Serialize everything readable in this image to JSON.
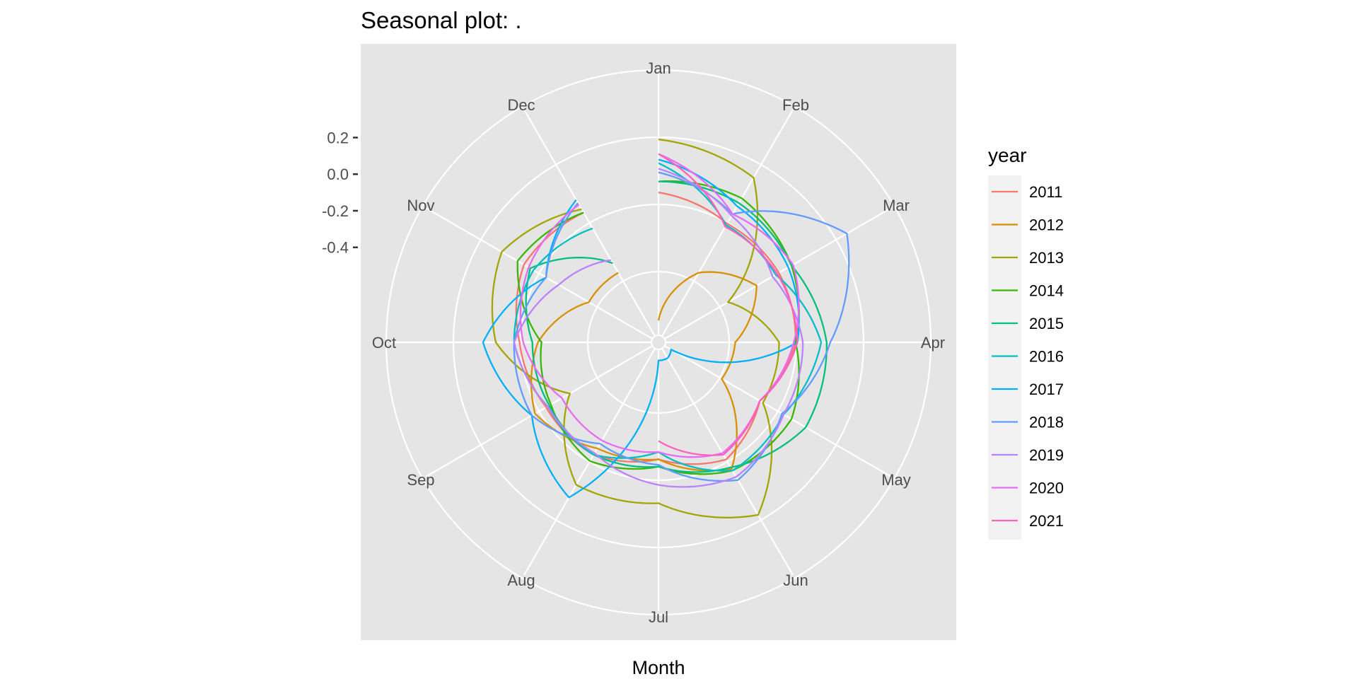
{
  "chart_data": {
    "type": "line",
    "coord": "polar",
    "title": "Seasonal plot: .",
    "xlabel": "Month",
    "ylabel": "",
    "categories": [
      "Jan",
      "Feb",
      "Mar",
      "Apr",
      "May",
      "Jun",
      "Jul",
      "Aug",
      "Sep",
      "Oct",
      "Nov",
      "Dec"
    ],
    "ylim": [
      -0.9,
      0.55
    ],
    "yticks": [
      0.2,
      0.0,
      -0.2,
      -0.4
    ],
    "ytick_labels": [
      "0.2",
      "0.0",
      "-0.2",
      "-0.4"
    ],
    "legend_title": "year",
    "legend_position": "right",
    "series": [
      {
        "name": "2011",
        "color": "#F8766D",
        "values": [
          -0.1,
          -0.17,
          -0.16,
          -0.17,
          -0.28,
          -0.18,
          -0.28,
          -0.21,
          -0.21,
          -0.16,
          -0.07,
          -0.1
        ]
      },
      {
        "name": "2012",
        "color": "#D89000",
        "values": [
          -0.8,
          -0.48,
          -0.3,
          -0.5,
          -0.52,
          -0.12,
          -0.28,
          -0.25,
          -0.14,
          -0.26,
          -0.48,
          -0.48
        ]
      },
      {
        "name": "2013",
        "color": "#A3A500",
        "values": [
          0.19,
          0.12,
          -0.48,
          -0.26,
          -0.26,
          0.17,
          -0.04,
          -0.02,
          -0.36,
          -0.03,
          0.07,
          -0.08
        ]
      },
      {
        "name": "2014",
        "color": "#39B600",
        "values": [
          -0.04,
          -0.01,
          -0.08,
          -0.17,
          -0.08,
          -0.11,
          -0.24,
          -0.17,
          -0.24,
          -0.28,
          -0.03,
          -0.1
        ]
      },
      {
        "name": "2015",
        "color": "#00BF7D",
        "values": [
          -0.04,
          -0.04,
          -0.08,
          0.0,
          0.01,
          -0.13,
          -0.24,
          -0.21,
          -0.23,
          -0.23,
          -0.11,
          -0.42
        ]
      },
      {
        "name": "2016",
        "color": "#00BFC4",
        "values": [
          0.06,
          -0.18,
          -0.18,
          -0.03,
          -0.13,
          -0.11,
          -0.32,
          -0.21,
          -0.22,
          -0.13,
          -0.13,
          -0.2
        ]
      },
      {
        "name": "2017",
        "color": "#00B0F6",
        "values": [
          0.08,
          -0.06,
          -0.1,
          -0.16,
          -0.84,
          -0.82,
          -0.82,
          0.06,
          -0.12,
          0.04,
          -0.21,
          -0.02
        ]
      },
      {
        "name": "2018",
        "color": "#619CFF",
        "values": [
          0.01,
          -0.11,
          0.27,
          0.02,
          -0.14,
          -0.05,
          -0.25,
          -0.28,
          -0.12,
          -0.13,
          -0.21,
          -0.04
        ]
      },
      {
        "name": "2019",
        "color": "#B983FF",
        "values": [
          0.03,
          -0.12,
          -0.2,
          -0.13,
          -0.13,
          -0.07,
          -0.14,
          -0.22,
          -0.22,
          -0.13,
          -0.29,
          -0.4
        ]
      },
      {
        "name": "2020",
        "color": "#E76BF3",
        "values": [
          0.11,
          -0.11,
          -0.07,
          -0.18,
          -0.28,
          -0.22,
          -0.32,
          -0.3,
          -0.31,
          -0.18,
          -0.1,
          -0.05
        ]
      },
      {
        "name": "2021",
        "color": "#FF62BC",
        "values": [
          0.11,
          -0.19,
          -0.17,
          -0.16,
          -0.28,
          -0.21,
          -0.38,
          null,
          null,
          null,
          null,
          null
        ]
      }
    ]
  }
}
